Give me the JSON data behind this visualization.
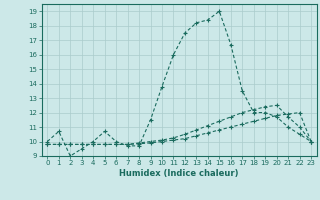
{
  "xlabel": "Humidex (Indice chaleur)",
  "background_color": "#cce8e8",
  "grid_color": "#aacccc",
  "line_color": "#1a6b5e",
  "xlim": [
    -0.5,
    23.5
  ],
  "ylim": [
    9,
    19.5
  ],
  "xticks": [
    0,
    1,
    2,
    3,
    4,
    5,
    6,
    7,
    8,
    9,
    10,
    11,
    12,
    13,
    14,
    15,
    16,
    17,
    18,
    19,
    20,
    21,
    22,
    23
  ],
  "yticks": [
    9,
    10,
    11,
    12,
    13,
    14,
    15,
    16,
    17,
    18,
    19
  ],
  "line1_x": [
    0,
    1,
    2,
    3,
    4,
    5,
    6,
    7,
    8,
    9,
    10,
    11,
    12,
    13,
    14,
    15,
    16,
    17,
    18,
    19,
    20,
    21,
    22,
    23
  ],
  "line1_y": [
    10.0,
    10.7,
    9.0,
    9.5,
    10.0,
    10.7,
    10.0,
    9.7,
    9.7,
    11.5,
    13.8,
    16.0,
    17.5,
    18.2,
    18.4,
    19.0,
    16.7,
    13.5,
    12.0,
    12.0,
    11.7,
    11.0,
    10.5,
    10.0
  ],
  "line2_x": [
    0,
    1,
    2,
    3,
    4,
    5,
    6,
    7,
    8,
    9,
    10,
    11,
    12,
    13,
    14,
    15,
    16,
    17,
    18,
    19,
    20,
    21,
    22,
    23
  ],
  "line2_y": [
    9.8,
    9.8,
    9.8,
    9.8,
    9.8,
    9.8,
    9.8,
    9.8,
    9.85,
    9.9,
    10.0,
    10.1,
    10.2,
    10.4,
    10.6,
    10.8,
    11.0,
    11.2,
    11.4,
    11.6,
    11.8,
    11.9,
    12.0,
    10.0
  ],
  "line3_x": [
    0,
    1,
    2,
    3,
    4,
    5,
    6,
    7,
    8,
    9,
    10,
    11,
    12,
    13,
    14,
    15,
    16,
    17,
    18,
    19,
    20,
    21,
    22,
    23
  ],
  "line3_y": [
    9.8,
    9.8,
    9.8,
    9.8,
    9.8,
    9.8,
    9.8,
    9.8,
    9.9,
    10.0,
    10.1,
    10.25,
    10.5,
    10.8,
    11.1,
    11.4,
    11.7,
    12.0,
    12.2,
    12.4,
    12.5,
    11.7,
    11.0,
    10.0
  ]
}
